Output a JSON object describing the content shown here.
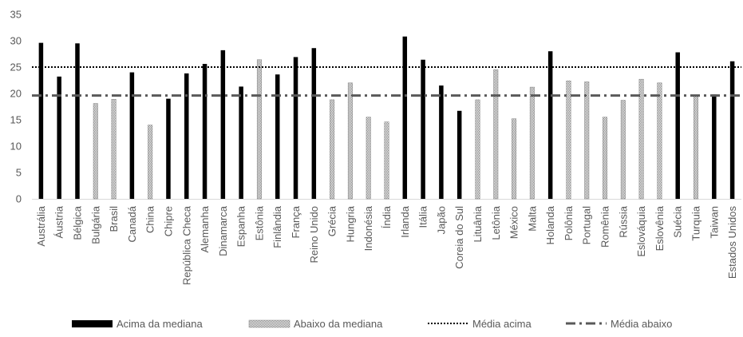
{
  "chart_data": {
    "type": "bar",
    "title": "",
    "xlabel": "",
    "ylabel": "",
    "ylim": [
      0,
      35
    ],
    "yticks": [
      0,
      5,
      10,
      15,
      20,
      25,
      30,
      35
    ],
    "grid": false,
    "legend_position": "bottom",
    "categories": [
      "Austrália",
      "Áustria",
      "Bélgica",
      "Bulgária",
      "Brasil",
      "Canadá",
      "China",
      "Chipre",
      "República Checa",
      "Alemanha",
      "Dinamarca",
      "Espanha",
      "Estônia",
      "Finlândia",
      "França",
      "Reino Unido",
      "Grécia",
      "Hungria",
      "Indonésia",
      "Índia",
      "Irlanda",
      "Itália",
      "Japão",
      "Coreia do Sul",
      "Lituânia",
      "Letônia",
      "México",
      "Malta",
      "Holanda",
      "Polônia",
      "Portugal",
      "Romênia",
      "Rússia",
      "Eslováquia",
      "Eslovênia",
      "Suécia",
      "Turquia",
      "Taiwan",
      "Estados Unidos"
    ],
    "values": [
      29.6,
      23.2,
      29.5,
      18.1,
      18.9,
      24.0,
      14.0,
      19.0,
      23.8,
      25.6,
      28.2,
      21.3,
      26.4,
      23.6,
      26.9,
      28.6,
      18.8,
      22.0,
      15.5,
      14.6,
      30.8,
      26.4,
      21.5,
      16.7,
      18.8,
      24.5,
      15.2,
      21.2,
      28.0,
      22.4,
      22.2,
      15.5,
      18.7,
      22.7,
      22.0,
      27.8,
      19.5,
      19.8,
      26.1
    ],
    "group": [
      "above",
      "above",
      "above",
      "below",
      "below",
      "above",
      "below",
      "above",
      "above",
      "above",
      "above",
      "above",
      "below",
      "above",
      "above",
      "above",
      "below",
      "below",
      "below",
      "below",
      "above",
      "above",
      "above",
      "above",
      "below",
      "below",
      "below",
      "below",
      "above",
      "below",
      "below",
      "below",
      "below",
      "below",
      "below",
      "above",
      "below",
      "above",
      "above"
    ],
    "reference_lines": [
      {
        "name": "Média acima",
        "value": 25.0,
        "style": "dotted"
      },
      {
        "name": "Média abaixo",
        "value": 19.6,
        "style": "dashdot"
      }
    ],
    "legend": [
      {
        "key": "above",
        "label": "Acima da mediana",
        "kind": "bar",
        "pattern": "solid"
      },
      {
        "key": "below",
        "label": "Abaixo da mediana",
        "kind": "bar",
        "pattern": "checkered"
      },
      {
        "key": "ref_above",
        "label": "Média acima",
        "kind": "line",
        "pattern": "dotted"
      },
      {
        "key": "ref_below",
        "label": "Média abaixo",
        "kind": "line",
        "pattern": "dashdot"
      }
    ],
    "colors": {
      "above": "#000000",
      "below": "#808080",
      "axis_text": "#595959",
      "axis_line": "#d9d9d9",
      "reference": "#000000",
      "reference_below": "#595959"
    }
  }
}
